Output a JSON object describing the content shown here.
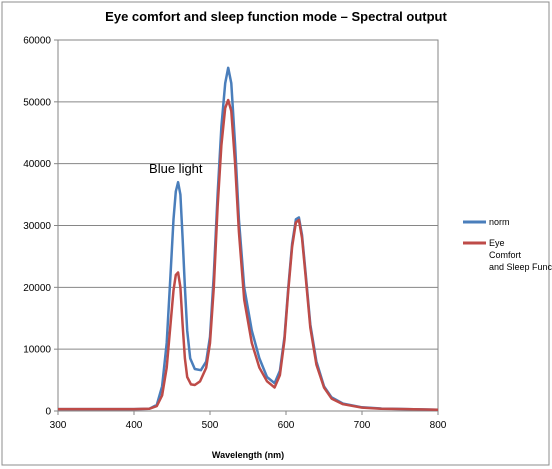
{
  "chart_data": {
    "type": "line",
    "title": "Eye comfort and sleep function mode – Spectral output",
    "xlabel": "Wavelength (nm)",
    "ylabel": "",
    "xlim": [
      300,
      800
    ],
    "ylim": [
      0,
      60000
    ],
    "x_ticks": [
      "300",
      "400",
      "500",
      "600",
      "700",
      "800"
    ],
    "y_ticks": [
      "0",
      "10000",
      "20000",
      "30000",
      "40000",
      "50000",
      "60000"
    ],
    "grid": "horizontal",
    "legend_position": "right",
    "annotations": [
      {
        "text": "Blue light",
        "x": 455,
        "y": 38500
      }
    ],
    "series": [
      {
        "name": "norm",
        "color": "#4a7ebb",
        "x": [
          300,
          400,
          420,
          430,
          437,
          443,
          448,
          452,
          455,
          458,
          461,
          464,
          467,
          470,
          474,
          480,
          488,
          495,
          500,
          505,
          510,
          515,
          520,
          524,
          528,
          533,
          538,
          545,
          555,
          565,
          575,
          585,
          592,
          598,
          603,
          608,
          613,
          617,
          621,
          626,
          632,
          640,
          650,
          660,
          675,
          700,
          725,
          760,
          800
        ],
        "values": [
          300,
          300,
          350,
          1000,
          4000,
          11000,
          22000,
          31000,
          35500,
          37000,
          35000,
          28000,
          20000,
          13000,
          8500,
          6800,
          6600,
          8000,
          12000,
          22000,
          35000,
          46000,
          53000,
          55500,
          53000,
          43000,
          31000,
          20000,
          13000,
          8500,
          5500,
          4500,
          6500,
          12000,
          20000,
          27000,
          31000,
          31300,
          28500,
          22000,
          14000,
          8000,
          4000,
          2200,
          1200,
          600,
          400,
          300,
          200
        ]
      },
      {
        "name": "Eye Comfort and Sleep Function",
        "color": "#be4b48",
        "x": [
          300,
          400,
          420,
          430,
          437,
          443,
          448,
          452,
          455,
          458,
          461,
          464,
          467,
          470,
          475,
          480,
          487,
          495,
          500,
          505,
          510,
          515,
          520,
          524,
          528,
          533,
          538,
          545,
          555,
          565,
          575,
          585,
          592,
          598,
          603,
          608,
          613,
          617,
          621,
          626,
          632,
          640,
          650,
          660,
          675,
          700,
          725,
          760,
          800
        ],
        "values": [
          300,
          300,
          350,
          800,
          2500,
          7000,
          14000,
          19500,
          22000,
          22400,
          20000,
          14000,
          8500,
          5500,
          4300,
          4200,
          4800,
          7000,
          11000,
          20000,
          33000,
          43000,
          49000,
          50300,
          48500,
          40000,
          29000,
          18000,
          11000,
          7000,
          4800,
          3800,
          5800,
          11500,
          19500,
          26500,
          30500,
          30900,
          28000,
          21500,
          13500,
          7500,
          3800,
          2000,
          1100,
          550,
          380,
          300,
          200
        ]
      }
    ]
  }
}
